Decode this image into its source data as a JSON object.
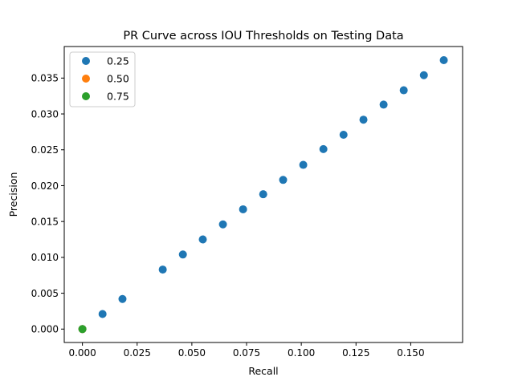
{
  "chart_data": {
    "type": "scatter",
    "title": "PR Curve across IOU Thresholds on Testing Data",
    "xlabel": "Recall",
    "ylabel": "Precision",
    "xlim": [
      -0.0083,
      0.1737
    ],
    "ylim": [
      -0.00187,
      0.0394
    ],
    "xticks": [
      0.0,
      0.025,
      0.05,
      0.075,
      0.1,
      0.125,
      0.15
    ],
    "xtick_labels": [
      "0.000",
      "0.025",
      "0.050",
      "0.075",
      "0.100",
      "0.125",
      "0.150"
    ],
    "yticks": [
      0.0,
      0.005,
      0.01,
      0.015,
      0.02,
      0.025,
      0.03,
      0.035
    ],
    "ytick_labels": [
      "0.000",
      "0.005",
      "0.010",
      "0.015",
      "0.020",
      "0.025",
      "0.030",
      "0.035"
    ],
    "grid": false,
    "legend_position": "top-left",
    "series": [
      {
        "name": "0.25",
        "color": "#1f77b4",
        "x": [
          0.0,
          0.0092,
          0.0183,
          0.0367,
          0.0459,
          0.055,
          0.0642,
          0.0734,
          0.0826,
          0.0917,
          0.1009,
          0.1101,
          0.1193,
          0.1284,
          0.1376,
          0.1468,
          0.156,
          0.1651
        ],
        "y": [
          0.0,
          0.0021,
          0.0042,
          0.0083,
          0.0104,
          0.0125,
          0.0146,
          0.0167,
          0.0188,
          0.0208,
          0.0229,
          0.0251,
          0.0271,
          0.0292,
          0.0313,
          0.0333,
          0.0354,
          0.0375
        ]
      },
      {
        "name": "0.50",
        "color": "#ff7f0e",
        "x": [
          0.0
        ],
        "y": [
          0.0
        ]
      },
      {
        "name": "0.75",
        "color": "#2ca02c",
        "x": [
          0.0
        ],
        "y": [
          0.0
        ]
      }
    ]
  }
}
